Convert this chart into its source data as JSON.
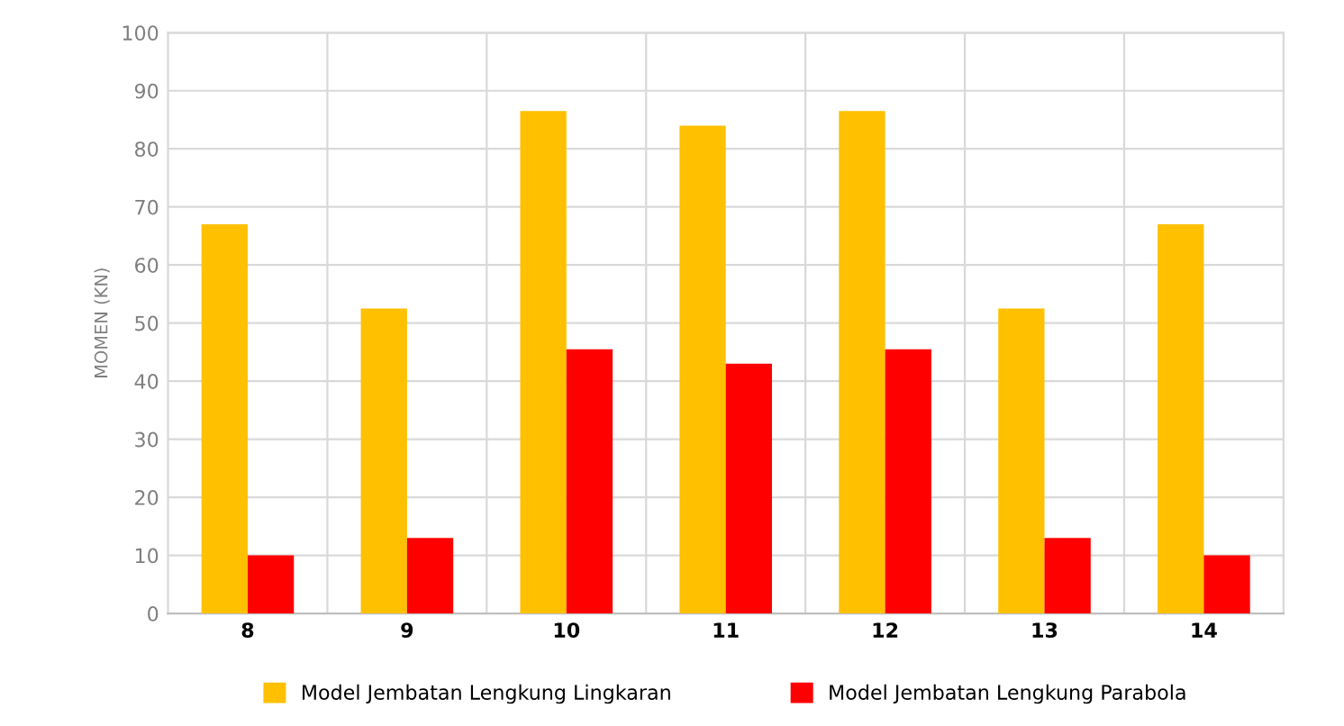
{
  "chart_data": {
    "type": "bar",
    "ylabel": "MOMEN (KN)",
    "categories": [
      "8",
      "9",
      "10",
      "11",
      "12",
      "13",
      "14"
    ],
    "series": [
      {
        "name": "Model Jembatan Lengkung Lingkaran",
        "color": "#ffc000",
        "values": [
          67,
          52.5,
          86.5,
          84,
          86.5,
          52.5,
          67
        ]
      },
      {
        "name": "Model Jembatan Lengkung Parabola",
        "color": "#ff0000",
        "values": [
          10,
          13,
          45.5,
          43,
          45.5,
          13,
          10
        ]
      }
    ],
    "ylim": [
      0,
      100
    ],
    "yticks": [
      0,
      10,
      20,
      30,
      40,
      50,
      60,
      70,
      80,
      90,
      100
    ],
    "grid": true,
    "legend": "bottom"
  }
}
